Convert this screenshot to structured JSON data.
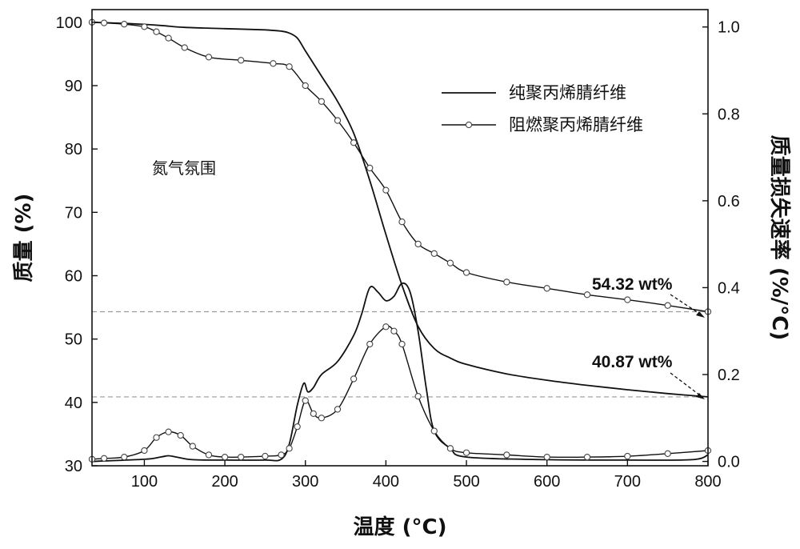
{
  "chart_data": {
    "type": "line",
    "xlabel": "温度 (°C)",
    "ylabel_left": "质量 (%)",
    "ylabel_right": "质量损失速率 (%/°C)",
    "xlim": [
      35,
      800
    ],
    "ylim_left": [
      30,
      102
    ],
    "ylim_right": [
      -0.01,
      1.04
    ],
    "x_ticks": [
      100,
      200,
      300,
      400,
      500,
      600,
      700,
      800
    ],
    "y_ticks_left": [
      30,
      40,
      50,
      60,
      70,
      80,
      90,
      100
    ],
    "y_ticks_right": [
      0.0,
      0.2,
      0.4,
      0.6,
      0.8,
      1.0
    ],
    "grid": false,
    "legend_position": "top-right",
    "annotation_text": "氮气氛围",
    "reference_lines": [
      {
        "axis": "left",
        "y": 54.32,
        "label": "54.32 wt%",
        "style": "dashed"
      },
      {
        "axis": "left",
        "y": 40.87,
        "label": "40.87 wt%",
        "style": "dashed"
      }
    ],
    "series": [
      {
        "name": "纯聚丙烯腈纤维",
        "marker": "none",
        "axis": "left",
        "x": [
          35,
          80,
          120,
          150,
          200,
          250,
          270,
          280,
          290,
          300,
          320,
          340,
          360,
          380,
          400,
          420,
          440,
          460,
          480,
          500,
          550,
          600,
          650,
          700,
          750,
          800
        ],
        "y": [
          100,
          99.8,
          99.5,
          99.2,
          99.0,
          98.8,
          98.6,
          98.3,
          97.5,
          95.5,
          91.5,
          87.5,
          82.5,
          75,
          66.5,
          58.5,
          52,
          48.5,
          47,
          46,
          44.5,
          43.5,
          42.7,
          42,
          41.4,
          40.87
        ]
      },
      {
        "name": "阻燃聚丙烯腈纤维",
        "marker": "circle",
        "axis": "left",
        "x": [
          35,
          50,
          75,
          100,
          115,
          130,
          150,
          180,
          220,
          260,
          280,
          300,
          320,
          340,
          360,
          380,
          400,
          420,
          440,
          460,
          480,
          500,
          550,
          600,
          650,
          700,
          750,
          800
        ],
        "y": [
          100,
          99.9,
          99.7,
          99.3,
          98.5,
          97.5,
          96,
          94.5,
          94,
          93.5,
          93,
          90,
          87.5,
          84.5,
          81,
          77,
          73.5,
          68.5,
          65,
          63.5,
          62,
          60.5,
          59,
          58,
          57,
          56.2,
          55.3,
          54.32
        ]
      },
      {
        "name": "纯聚丙烯腈纤维",
        "marker": "none",
        "axis": "right",
        "x": [
          35,
          100,
          120,
          130,
          140,
          160,
          200,
          250,
          270,
          280,
          290,
          298,
          303,
          310,
          320,
          340,
          360,
          370,
          380,
          390,
          400,
          410,
          420,
          430,
          440,
          450,
          460,
          480,
          500,
          600,
          700,
          780,
          800
        ],
        "y": [
          0.0,
          0.005,
          0.01,
          0.013,
          0.01,
          0.004,
          0.003,
          0.003,
          0.005,
          0.04,
          0.13,
          0.18,
          0.16,
          0.17,
          0.2,
          0.23,
          0.29,
          0.34,
          0.4,
          0.39,
          0.37,
          0.38,
          0.41,
          0.39,
          0.3,
          0.17,
          0.07,
          0.03,
          0.01,
          0.004,
          0.003,
          0.004,
          0.015
        ]
      },
      {
        "name": "阻燃聚丙烯腈纤维",
        "marker": "circle",
        "axis": "right",
        "x": [
          35,
          50,
          75,
          100,
          115,
          130,
          145,
          160,
          180,
          200,
          220,
          250,
          270,
          280,
          290,
          300,
          310,
          320,
          340,
          360,
          380,
          400,
          410,
          420,
          440,
          460,
          480,
          500,
          550,
          600,
          650,
          700,
          750,
          800
        ],
        "y": [
          0.005,
          0.007,
          0.01,
          0.025,
          0.055,
          0.068,
          0.06,
          0.035,
          0.015,
          0.01,
          0.01,
          0.012,
          0.015,
          0.03,
          0.08,
          0.14,
          0.11,
          0.1,
          0.12,
          0.19,
          0.27,
          0.31,
          0.3,
          0.27,
          0.15,
          0.07,
          0.03,
          0.02,
          0.015,
          0.01,
          0.01,
          0.012,
          0.018,
          0.025
        ]
      }
    ]
  }
}
